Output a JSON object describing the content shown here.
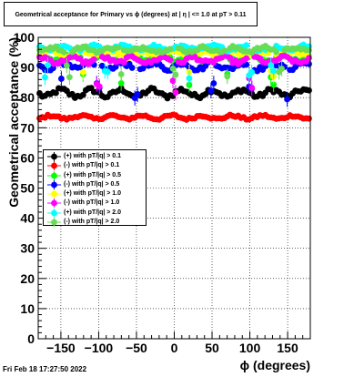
{
  "title": "Geometrical acceptance for Primary vs ϕ (degrees) at |  η | <= 1.0 at pT > 0.11",
  "date_stamp": "Fri Feb 18 17:27:50 2022",
  "colors": {
    "black": "#000000",
    "red": "#ff0000",
    "green": "#00ff00",
    "blue": "#0000ff",
    "yellow": "#ffff00",
    "magenta": "#ff00ff",
    "cyan": "#00ffff",
    "lightgreen": "#66dd55"
  },
  "chart_data": {
    "type": "scatter",
    "title": "Geometrical acceptance for Primary vs ϕ (degrees) at |  η | <= 1.0 at pT > 0.11",
    "xlabel": "ϕ (degrees)",
    "ylabel": "Geometrical acceptance (%)",
    "xlim": [
      -180,
      180
    ],
    "ylim": [
      0,
      100
    ],
    "x_ticks": [
      -150,
      -100,
      -50,
      0,
      50,
      100,
      150
    ],
    "x_tick_labels": [
      "−150",
      "−100",
      "−50",
      "0",
      "50",
      "100",
      "150"
    ],
    "y_ticks": [
      0,
      10,
      20,
      30,
      40,
      50,
      60,
      70,
      80,
      90,
      100
    ],
    "grid": true,
    "legend_position": "middle-left",
    "bins": 100,
    "series": [
      {
        "name": "(+) with pT/|q| > 0.1",
        "color": "#000000",
        "marker": "circle",
        "mean": 81.5,
        "amplitude": 1.6,
        "dips": []
      },
      {
        "name": "(-) with pT/|q| > 0.1",
        "color": "#ff0000",
        "marker": "circle",
        "mean": 73.5,
        "amplitude": 0.8,
        "dips": []
      },
      {
        "name": "(+) with pT/|q| > 0.5",
        "color": "#00ff00",
        "marker": "circle",
        "mean": 93.0,
        "amplitude": 1.5,
        "dips": [
          -120,
          -70,
          20,
          70,
          130
        ]
      },
      {
        "name": "(-) with pT/|q| > 0.5",
        "color": "#0000ff",
        "marker": "circle",
        "mean": 90.5,
        "amplitude": 1.5,
        "dips": [
          -150,
          -100,
          -50,
          50,
          100,
          150
        ]
      },
      {
        "name": "(+) with pT/|q| > 1.0",
        "color": "#ffff00",
        "marker": "circle",
        "mean": 94.5,
        "amplitude": 1.2,
        "dips": [
          -120,
          20,
          130
        ]
      },
      {
        "name": "(-) with pT/|q| > 1.0",
        "color": "#ff00ff",
        "marker": "circle",
        "mean": 92.5,
        "amplitude": 1.3,
        "dips": [
          -100,
          0,
          100
        ]
      },
      {
        "name": "(+) with pT/|q| > 2.0",
        "color": "#00ffff",
        "marker": "circle",
        "mean": 96.5,
        "amplitude": 1.0,
        "dips": [
          -170,
          -90,
          20,
          100,
          130
        ]
      },
      {
        "name": "(-) with pT/|q| > 2.0",
        "color": "#66dd55",
        "marker": "circle",
        "mean": 96.0,
        "amplitude": 1.0,
        "dips": [
          -140,
          -70,
          0,
          70,
          140
        ]
      }
    ]
  }
}
